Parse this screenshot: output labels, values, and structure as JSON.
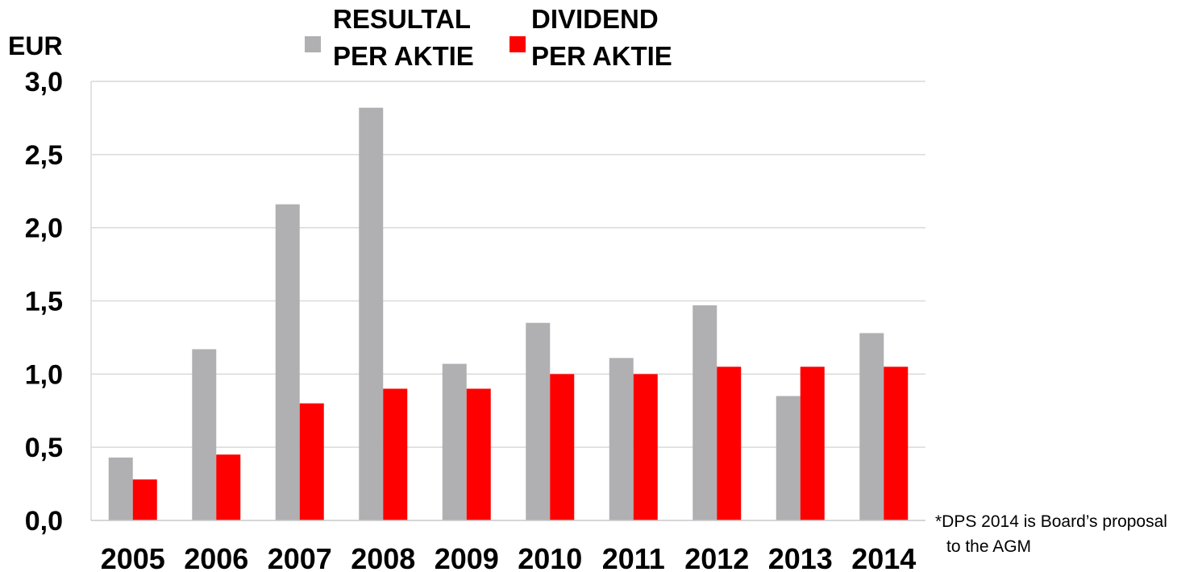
{
  "chart_data": {
    "type": "bar",
    "unit_label": "EUR",
    "categories": [
      "2005",
      "2006",
      "2007",
      "2008",
      "2009",
      "2010",
      "2011",
      "2012",
      "2013",
      "2014"
    ],
    "series": [
      {
        "name_lines": [
          "RESULTAL",
          "PER AKTIE"
        ],
        "color": "#b0b0b2",
        "values": [
          0.43,
          1.17,
          2.16,
          2.82,
          1.07,
          1.35,
          1.11,
          1.47,
          0.85,
          1.28
        ]
      },
      {
        "name_lines": [
          "DIVIDEND",
          "PER AKTIE"
        ],
        "color": "#ff0000",
        "values": [
          0.28,
          0.45,
          0.8,
          0.9,
          0.9,
          1.0,
          1.0,
          1.05,
          1.05,
          1.05
        ]
      }
    ],
    "ylim": [
      0,
      3.0
    ],
    "yticks": [
      "0,0",
      "0,5",
      "1,0",
      "1,5",
      "2,0",
      "2,5",
      "3,0"
    ],
    "grid": true,
    "legend_position": "top",
    "note_lines": [
      "*DPS 2014 is Board’s proposal",
      "to the AGM"
    ]
  }
}
